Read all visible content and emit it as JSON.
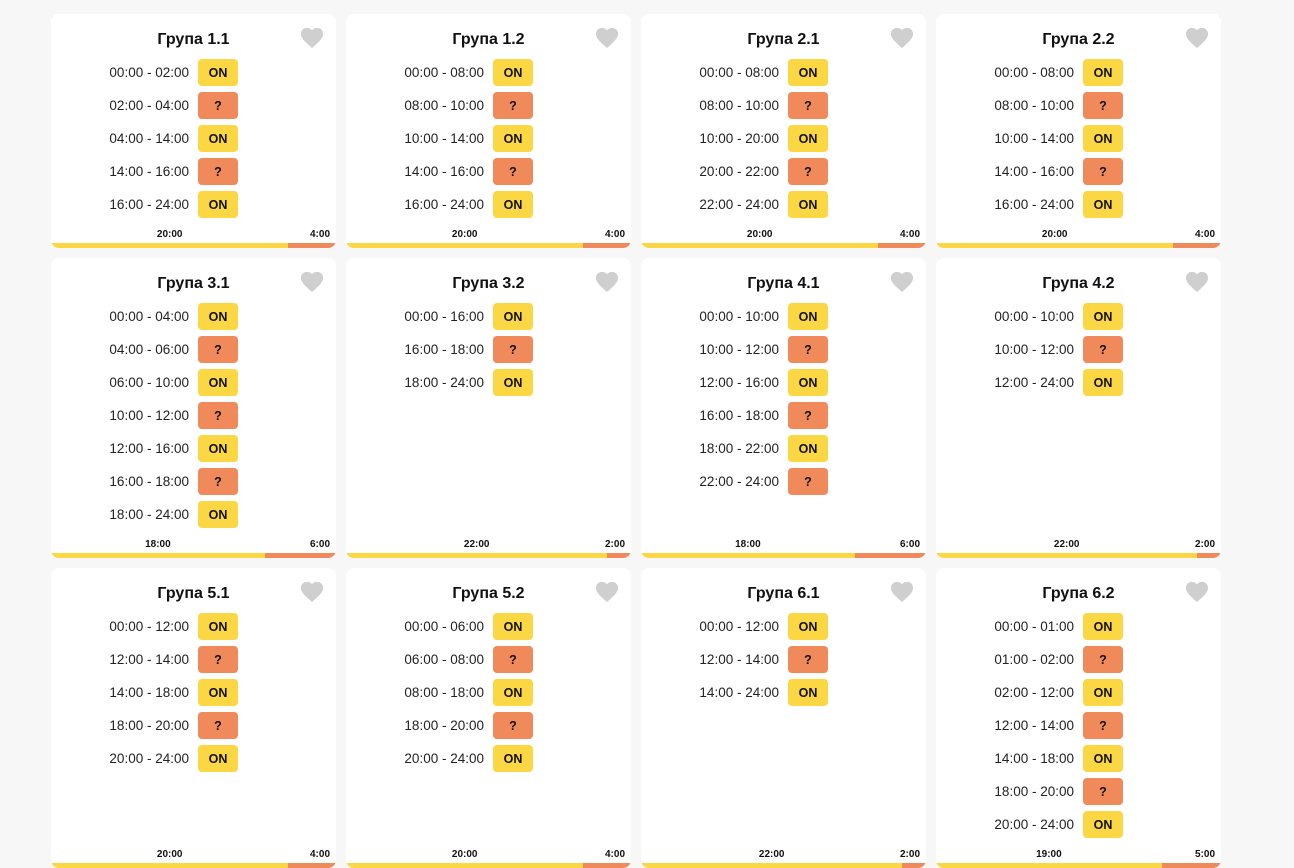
{
  "colors": {
    "on": "#fbd744",
    "maybe": "#f08a5a",
    "heart": "#cfcfcf"
  },
  "icons": {
    "favorite": "heart-icon"
  },
  "groups": [
    {
      "title": "Група 1.1",
      "slots": [
        {
          "range": "00:00 - 02:00",
          "status": "ON"
        },
        {
          "range": "02:00 - 04:00",
          "status": "?"
        },
        {
          "range": "04:00 - 14:00",
          "status": "ON"
        },
        {
          "range": "14:00 - 16:00",
          "status": "?"
        },
        {
          "range": "16:00 - 24:00",
          "status": "ON"
        }
      ],
      "progress": {
        "current_label": "20:00",
        "remaining_label": "4:00",
        "fraction": 0.833
      }
    },
    {
      "title": "Група 1.2",
      "slots": [
        {
          "range": "00:00 - 08:00",
          "status": "ON"
        },
        {
          "range": "08:00 - 10:00",
          "status": "?"
        },
        {
          "range": "10:00 - 14:00",
          "status": "ON"
        },
        {
          "range": "14:00 - 16:00",
          "status": "?"
        },
        {
          "range": "16:00 - 24:00",
          "status": "ON"
        }
      ],
      "progress": {
        "current_label": "20:00",
        "remaining_label": "4:00",
        "fraction": 0.833
      }
    },
    {
      "title": "Група 2.1",
      "slots": [
        {
          "range": "00:00 - 08:00",
          "status": "ON"
        },
        {
          "range": "08:00 - 10:00",
          "status": "?"
        },
        {
          "range": "10:00 - 20:00",
          "status": "ON"
        },
        {
          "range": "20:00 - 22:00",
          "status": "?"
        },
        {
          "range": "22:00 - 24:00",
          "status": "ON"
        }
      ],
      "progress": {
        "current_label": "20:00",
        "remaining_label": "4:00",
        "fraction": 0.833
      }
    },
    {
      "title": "Група 2.2",
      "slots": [
        {
          "range": "00:00 - 08:00",
          "status": "ON"
        },
        {
          "range": "08:00 - 10:00",
          "status": "?"
        },
        {
          "range": "10:00 - 14:00",
          "status": "ON"
        },
        {
          "range": "14:00 - 16:00",
          "status": "?"
        },
        {
          "range": "16:00 - 24:00",
          "status": "ON"
        }
      ],
      "progress": {
        "current_label": "20:00",
        "remaining_label": "4:00",
        "fraction": 0.833
      }
    },
    {
      "title": "Група 3.1",
      "slots": [
        {
          "range": "00:00 - 04:00",
          "status": "ON"
        },
        {
          "range": "04:00 - 06:00",
          "status": "?"
        },
        {
          "range": "06:00 - 10:00",
          "status": "ON"
        },
        {
          "range": "10:00 - 12:00",
          "status": "?"
        },
        {
          "range": "12:00 - 16:00",
          "status": "ON"
        },
        {
          "range": "16:00 - 18:00",
          "status": "?"
        },
        {
          "range": "18:00 - 24:00",
          "status": "ON"
        }
      ],
      "progress": {
        "current_label": "18:00",
        "remaining_label": "6:00",
        "fraction": 0.75
      }
    },
    {
      "title": "Група 3.2",
      "slots": [
        {
          "range": "00:00 - 16:00",
          "status": "ON"
        },
        {
          "range": "16:00 - 18:00",
          "status": "?"
        },
        {
          "range": "18:00 - 24:00",
          "status": "ON"
        }
      ],
      "progress": {
        "current_label": "22:00",
        "remaining_label": "2:00",
        "fraction": 0.917
      }
    },
    {
      "title": "Група 4.1",
      "slots": [
        {
          "range": "00:00 - 10:00",
          "status": "ON"
        },
        {
          "range": "10:00 - 12:00",
          "status": "?"
        },
        {
          "range": "12:00 - 16:00",
          "status": "ON"
        },
        {
          "range": "16:00 - 18:00",
          "status": "?"
        },
        {
          "range": "18:00 - 22:00",
          "status": "ON"
        },
        {
          "range": "22:00 - 24:00",
          "status": "?"
        }
      ],
      "progress": {
        "current_label": "18:00",
        "remaining_label": "6:00",
        "fraction": 0.75
      }
    },
    {
      "title": "Група 4.2",
      "slots": [
        {
          "range": "00:00 - 10:00",
          "status": "ON"
        },
        {
          "range": "10:00 - 12:00",
          "status": "?"
        },
        {
          "range": "12:00 - 24:00",
          "status": "ON"
        }
      ],
      "progress": {
        "current_label": "22:00",
        "remaining_label": "2:00",
        "fraction": 0.917
      }
    },
    {
      "title": "Група 5.1",
      "slots": [
        {
          "range": "00:00 - 12:00",
          "status": "ON"
        },
        {
          "range": "12:00 - 14:00",
          "status": "?"
        },
        {
          "range": "14:00 - 18:00",
          "status": "ON"
        },
        {
          "range": "18:00 - 20:00",
          "status": "?"
        },
        {
          "range": "20:00 - 24:00",
          "status": "ON"
        }
      ],
      "progress": {
        "current_label": "20:00",
        "remaining_label": "4:00",
        "fraction": 0.833
      }
    },
    {
      "title": "Група 5.2",
      "slots": [
        {
          "range": "00:00 - 06:00",
          "status": "ON"
        },
        {
          "range": "06:00 - 08:00",
          "status": "?"
        },
        {
          "range": "08:00 - 18:00",
          "status": "ON"
        },
        {
          "range": "18:00 - 20:00",
          "status": "?"
        },
        {
          "range": "20:00 - 24:00",
          "status": "ON"
        }
      ],
      "progress": {
        "current_label": "20:00",
        "remaining_label": "4:00",
        "fraction": 0.833
      }
    },
    {
      "title": "Група 6.1",
      "slots": [
        {
          "range": "00:00 - 12:00",
          "status": "ON"
        },
        {
          "range": "12:00 - 14:00",
          "status": "?"
        },
        {
          "range": "14:00 - 24:00",
          "status": "ON"
        }
      ],
      "progress": {
        "current_label": "22:00",
        "remaining_label": "2:00",
        "fraction": 0.917
      }
    },
    {
      "title": "Група 6.2",
      "slots": [
        {
          "range": "00:00 - 01:00",
          "status": "ON"
        },
        {
          "range": "01:00 - 02:00",
          "status": "?"
        },
        {
          "range": "02:00 - 12:00",
          "status": "ON"
        },
        {
          "range": "12:00 - 14:00",
          "status": "?"
        },
        {
          "range": "14:00 - 18:00",
          "status": "ON"
        },
        {
          "range": "18:00 - 20:00",
          "status": "?"
        },
        {
          "range": "20:00 - 24:00",
          "status": "ON"
        }
      ],
      "progress": {
        "current_label": "19:00",
        "remaining_label": "5:00",
        "fraction": 0.792
      }
    }
  ]
}
